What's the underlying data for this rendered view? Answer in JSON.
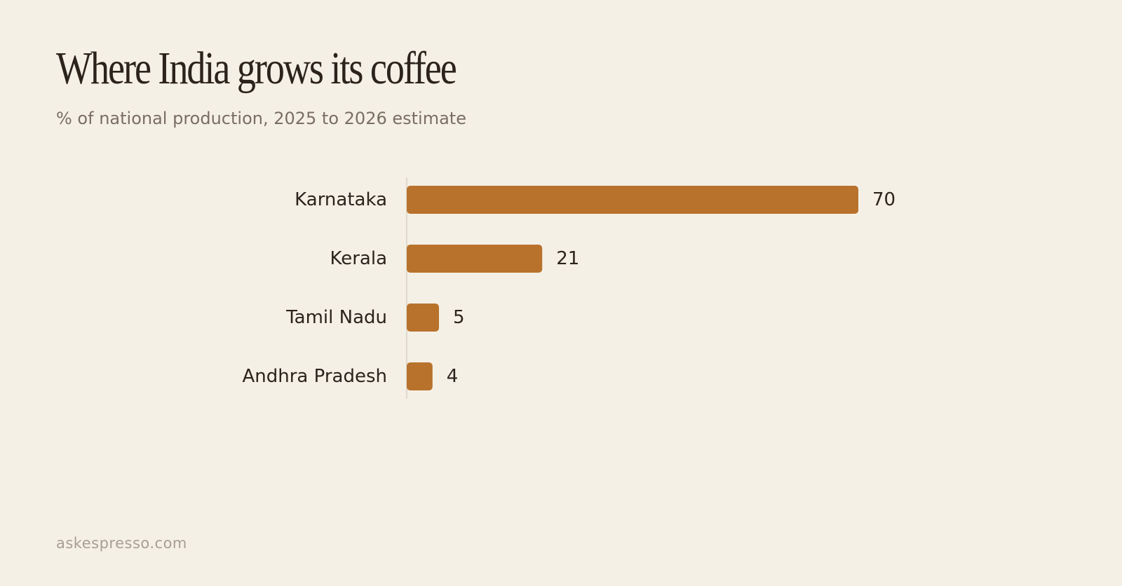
{
  "title": "Where India grows its coffee",
  "subtitle": "% of national production, 2025 to 2026 estimate",
  "footer": "askespresso.com",
  "colors": {
    "background": "#f5f0e6",
    "bar": "#b8722c",
    "axis": "#d9d0c3",
    "text": "#2c231c"
  },
  "chart_data": {
    "type": "bar",
    "orientation": "horizontal",
    "categories": [
      "Karnataka",
      "Kerala",
      "Tamil Nadu",
      "Andhra Pradesh"
    ],
    "values": [
      70,
      21,
      5,
      4
    ],
    "data_labels": [
      "70",
      "21",
      "5",
      "4"
    ],
    "xlim": [
      0,
      70
    ],
    "grid": false,
    "legend": "none"
  }
}
